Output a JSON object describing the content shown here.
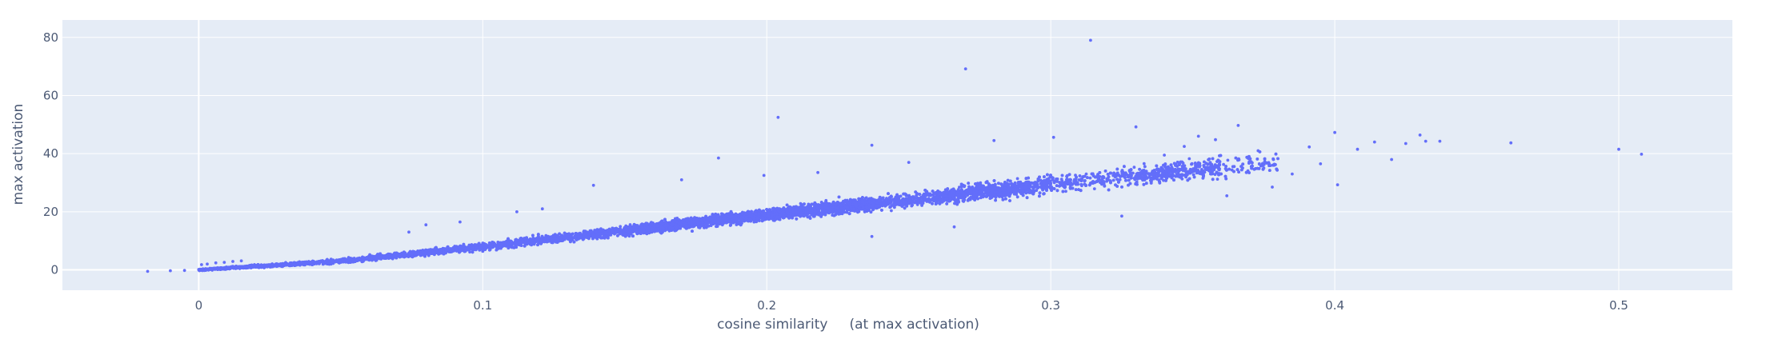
{
  "chart_data": {
    "type": "scatter",
    "xlabel": "cosine similarity     (at max activation)",
    "ylabel": "max activation",
    "xlim": [
      -0.048,
      0.54
    ],
    "ylim": [
      -7,
      86
    ],
    "x_ticks": [
      0,
      0.1,
      0.2,
      0.3,
      0.4,
      0.5
    ],
    "x_tick_labels": [
      "0",
      "0.1",
      "0.2",
      "0.3",
      "0.4",
      "0.5"
    ],
    "y_ticks": [
      0,
      20,
      40,
      60,
      80
    ],
    "y_tick_labels": [
      "0",
      "20",
      "40",
      "60",
      "80"
    ],
    "grid": true,
    "colors": {
      "marker": "#636efa",
      "plot_background": "#e5ecf6",
      "grid": "#ffffff"
    },
    "series": [
      {
        "trend": {
          "x": [
            0,
            0.05,
            0.1,
            0.15,
            0.2,
            0.25,
            0.3,
            0.35,
            0.4
          ],
          "y": [
            0,
            3,
            8,
            13.5,
            19,
            24,
            29.5,
            34.5,
            39
          ]
        },
        "points": [
          [
            -0.018,
            -0.5
          ],
          [
            -0.01,
            -0.3
          ],
          [
            -0.005,
            -0.2
          ],
          [
            0.001,
            1.8
          ],
          [
            0.003,
            2.0
          ],
          [
            0.006,
            2.4
          ],
          [
            0.009,
            2.6
          ],
          [
            0.012,
            2.9
          ],
          [
            0.015,
            3.1
          ],
          [
            0.012,
            1.2
          ],
          [
            0.204,
            52.5
          ],
          [
            0.27,
            69.2
          ],
          [
            0.314,
            79
          ],
          [
            0.183,
            38.5
          ],
          [
            0.139,
            29.1
          ],
          [
            0.237,
            42.9
          ],
          [
            0.28,
            44.5
          ],
          [
            0.301,
            45.6
          ],
          [
            0.33,
            49.2
          ],
          [
            0.366,
            49.7
          ],
          [
            0.391,
            42.3
          ],
          [
            0.4,
            47.3
          ],
          [
            0.401,
            29.3
          ],
          [
            0.408,
            41.5
          ],
          [
            0.414,
            44.0
          ],
          [
            0.42,
            38.0
          ],
          [
            0.425,
            43.5
          ],
          [
            0.43,
            46.4
          ],
          [
            0.432,
            44.3
          ],
          [
            0.437,
            44.3
          ],
          [
            0.462,
            43.7
          ],
          [
            0.5,
            41.5
          ],
          [
            0.508,
            39.8
          ],
          [
            0.385,
            33.0
          ],
          [
            0.378,
            28.5
          ],
          [
            0.362,
            25.5
          ],
          [
            0.325,
            18.5
          ],
          [
            0.266,
            14.8
          ],
          [
            0.237,
            11.5
          ],
          [
            0.074,
            13.0
          ],
          [
            0.08,
            15.5
          ],
          [
            0.092,
            16.5
          ],
          [
            0.112,
            20.0
          ],
          [
            0.121,
            21.0
          ],
          [
            0.17,
            31.0
          ],
          [
            0.199,
            32.5
          ],
          [
            0.218,
            33.5
          ],
          [
            0.25,
            37.0
          ],
          [
            0.352,
            46.0
          ],
          [
            0.358,
            44.8
          ],
          [
            0.373,
            41.0
          ],
          [
            0.347,
            42.5
          ],
          [
            0.34,
            39.5
          ],
          [
            0.395,
            36.5
          ]
        ]
      }
    ]
  }
}
